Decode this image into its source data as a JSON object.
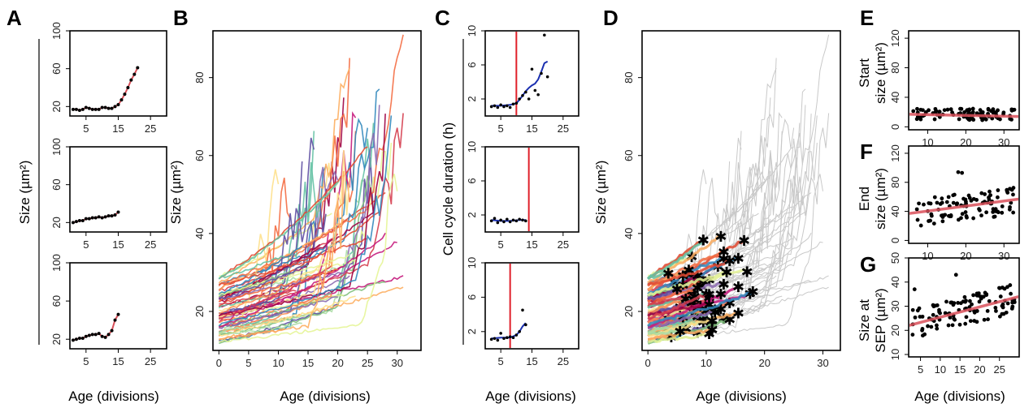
{
  "panel_labels": [
    "A",
    "B",
    "C",
    "D",
    "E",
    "F",
    "G"
  ],
  "labels": {
    "age": "Age (divisions)",
    "size": "Size (µm²)",
    "cycle": "Cell cycle duration (h)",
    "start_1": "Start",
    "start_2": "size (µm²)",
    "end_1": "End",
    "end_2": "size (µm²)",
    "sep_1": "Size at",
    "sep_2": "SEP (µm²)"
  },
  "chart_data": [
    {
      "panel": "A",
      "type": "line",
      "subplot": 1,
      "xlim": [
        0,
        30
      ],
      "ylim": [
        10,
        100
      ],
      "xticks": [
        5,
        15,
        25
      ],
      "yticks": [
        20,
        60,
        100
      ],
      "points": [
        [
          1,
          17
        ],
        [
          2,
          17
        ],
        [
          3,
          16
        ],
        [
          4,
          17
        ],
        [
          5,
          19
        ],
        [
          6,
          18
        ],
        [
          7,
          17
        ],
        [
          8,
          17
        ],
        [
          9,
          17
        ],
        [
          10,
          19
        ],
        [
          11,
          19
        ],
        [
          12,
          18
        ],
        [
          13,
          18
        ],
        [
          14,
          20
        ],
        [
          15,
          22
        ],
        [
          16,
          27
        ],
        [
          17,
          33
        ],
        [
          18,
          40
        ],
        [
          19,
          48
        ],
        [
          20,
          54
        ],
        [
          21,
          61
        ]
      ]
    },
    {
      "panel": "A",
      "type": "line",
      "subplot": 2,
      "xlim": [
        0,
        30
      ],
      "ylim": [
        10,
        100
      ],
      "xticks": [
        5,
        15,
        25
      ],
      "yticks": [
        20,
        60,
        100
      ],
      "points": [
        [
          1,
          20
        ],
        [
          2,
          21
        ],
        [
          3,
          22
        ],
        [
          4,
          22
        ],
        [
          5,
          24
        ],
        [
          6,
          24
        ],
        [
          7,
          25
        ],
        [
          8,
          25
        ],
        [
          9,
          26
        ],
        [
          10,
          25
        ],
        [
          11,
          26
        ],
        [
          12,
          27
        ],
        [
          13,
          27
        ],
        [
          14,
          28
        ],
        [
          15,
          31
        ]
      ]
    },
    {
      "panel": "A",
      "type": "line",
      "subplot": 3,
      "xlim": [
        0,
        30
      ],
      "ylim": [
        10,
        100
      ],
      "xticks": [
        5,
        15,
        25
      ],
      "yticks": [
        20,
        60,
        100
      ],
      "points": [
        [
          1,
          19
        ],
        [
          2,
          20
        ],
        [
          3,
          21
        ],
        [
          4,
          21
        ],
        [
          5,
          23
        ],
        [
          6,
          24
        ],
        [
          7,
          25
        ],
        [
          8,
          25
        ],
        [
          9,
          26
        ],
        [
          10,
          23
        ],
        [
          11,
          22
        ],
        [
          12,
          25
        ],
        [
          13,
          29
        ],
        [
          14,
          40
        ],
        [
          15,
          46
        ]
      ]
    },
    {
      "panel": "B",
      "type": "line",
      "xlim": [
        -1,
        34
      ],
      "ylim": [
        10,
        92
      ],
      "xticks": [
        0,
        5,
        10,
        15,
        20,
        25,
        30
      ],
      "yticks": [
        20,
        40,
        60,
        80
      ],
      "series_count": 70
    },
    {
      "panel": "C",
      "type": "scatter",
      "subplot": 1,
      "xlim": [
        0,
        30
      ],
      "ylim": [
        0,
        10
      ],
      "xticks": [
        5,
        15,
        25
      ],
      "yticks": [
        2,
        6,
        10
      ],
      "marker_x": 10,
      "points": [
        [
          2,
          1.1
        ],
        [
          3,
          1.2
        ],
        [
          4,
          1.0
        ],
        [
          5,
          1.3
        ],
        [
          6,
          1.1
        ],
        [
          7,
          1.2
        ],
        [
          8,
          1.0
        ],
        [
          9,
          1.4
        ],
        [
          10,
          1.5
        ],
        [
          11,
          2.0
        ],
        [
          12,
          2.4
        ],
        [
          13,
          2.8
        ],
        [
          14,
          2.0
        ],
        [
          15,
          5.5
        ],
        [
          16,
          3.0
        ],
        [
          17,
          2.5
        ],
        [
          18,
          5.0
        ],
        [
          19,
          9.5
        ],
        [
          20,
          4.6
        ]
      ],
      "fit": [
        [
          2,
          1.2
        ],
        [
          5,
          1.2
        ],
        [
          8,
          1.3
        ],
        [
          10,
          1.5
        ],
        [
          11,
          1.9
        ],
        [
          12,
          2.4
        ],
        [
          13,
          2.9
        ],
        [
          14,
          3.3
        ],
        [
          15,
          3.6
        ],
        [
          16,
          3.8
        ],
        [
          17,
          4.3
        ],
        [
          18,
          5.2
        ],
        [
          19,
          6.2
        ],
        [
          20,
          6.4
        ]
      ]
    },
    {
      "panel": "C",
      "type": "scatter",
      "subplot": 2,
      "xlim": [
        0,
        30
      ],
      "ylim": [
        0,
        10
      ],
      "xticks": [
        5,
        15,
        25
      ],
      "yticks": [
        2,
        6,
        10
      ],
      "marker_x": 14,
      "points": [
        [
          2,
          1.3
        ],
        [
          3,
          1.6
        ],
        [
          4,
          1.1
        ],
        [
          5,
          1.4
        ],
        [
          6,
          1.2
        ],
        [
          7,
          1.5
        ],
        [
          8,
          1.2
        ],
        [
          9,
          1.4
        ],
        [
          10,
          1.3
        ],
        [
          11,
          1.5
        ],
        [
          12,
          1.4
        ],
        [
          13,
          1.3
        ]
      ],
      "fit": [
        [
          2,
          1.4
        ],
        [
          5,
          1.3
        ],
        [
          8,
          1.3
        ],
        [
          11,
          1.4
        ],
        [
          13,
          1.4
        ]
      ]
    },
    {
      "panel": "C",
      "type": "scatter",
      "subplot": 3,
      "xlim": [
        0,
        30
      ],
      "ylim": [
        0,
        10
      ],
      "xticks": [
        5,
        15,
        25
      ],
      "yticks": [
        2,
        6,
        10
      ],
      "marker_x": 8,
      "points": [
        [
          2,
          1.1
        ],
        [
          3,
          1.2
        ],
        [
          4,
          1.0
        ],
        [
          5,
          1.8
        ],
        [
          6,
          1.2
        ],
        [
          7,
          1.3
        ],
        [
          8,
          1.4
        ],
        [
          9,
          1.3
        ],
        [
          10,
          1.6
        ],
        [
          11,
          2.0
        ],
        [
          12,
          4.5
        ],
        [
          13,
          2.8
        ]
      ],
      "fit": [
        [
          2,
          1.2
        ],
        [
          5,
          1.3
        ],
        [
          8,
          1.3
        ],
        [
          10,
          1.6
        ],
        [
          11,
          2.0
        ],
        [
          12,
          2.6
        ],
        [
          13,
          3.0
        ]
      ]
    },
    {
      "panel": "D",
      "type": "line",
      "xlim": [
        -1,
        33
      ],
      "ylim": [
        10,
        92
      ],
      "xticks": [
        0,
        10,
        20,
        30
      ],
      "yticks": [
        20,
        40,
        60,
        80
      ],
      "series_count": 70
    },
    {
      "panel": "E",
      "type": "scatter",
      "xlim": [
        5,
        34
      ],
      "ylim": [
        -4,
        130
      ],
      "xticks": [
        10,
        20,
        30
      ],
      "yticks": [
        0,
        40,
        80,
        120
      ],
      "fit": [
        [
          5,
          17
        ],
        [
          34,
          14
        ]
      ]
    },
    {
      "panel": "F",
      "type": "scatter",
      "xlim": [
        5,
        34
      ],
      "ylim": [
        -4,
        130
      ],
      "xticks": [
        10,
        20,
        30
      ],
      "yticks": [
        0,
        40,
        80,
        120
      ],
      "fit": [
        [
          5,
          37
        ],
        [
          34,
          57
        ]
      ]
    },
    {
      "panel": "G",
      "type": "scatter",
      "xlim": [
        2,
        30
      ],
      "ylim": [
        9,
        50
      ],
      "xticks": [
        5,
        10,
        15,
        20,
        25
      ],
      "yticks": [
        10,
        20,
        30,
        40,
        50
      ],
      "fit": [
        [
          2,
          22
        ],
        [
          30,
          34
        ]
      ]
    }
  ]
}
